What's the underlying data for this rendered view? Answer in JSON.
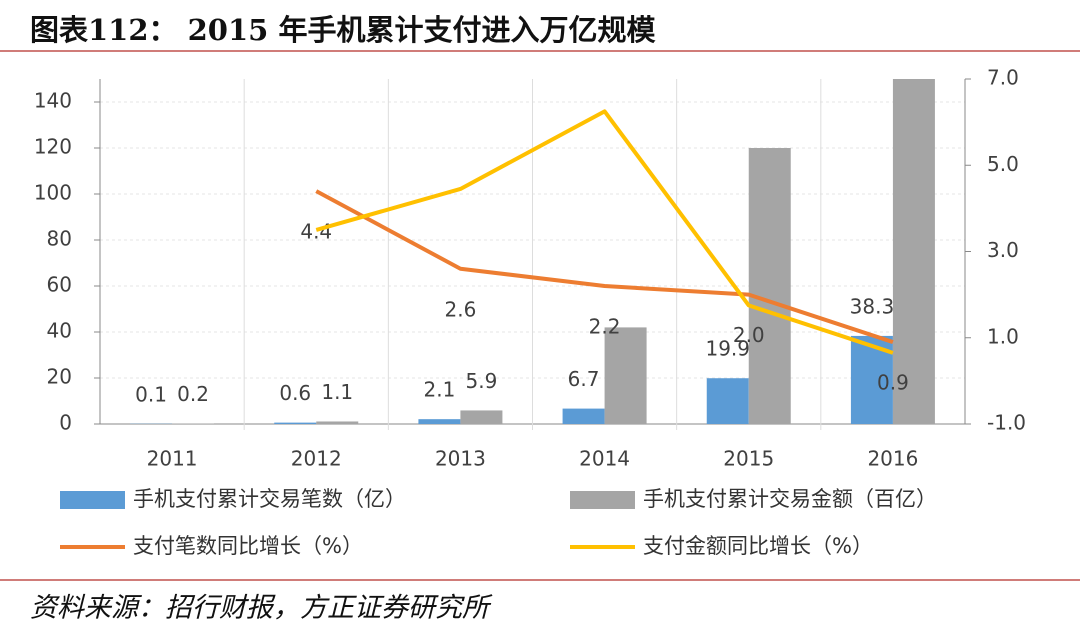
{
  "chart_data": {
    "type": "bar",
    "title": "图表112：  2015 年手机累计支付进入万亿规模",
    "source": "资料来源：招行财报，方正证券研究所",
    "categories": [
      "2011",
      "2012",
      "2013",
      "2014",
      "2015",
      "2016"
    ],
    "ylim": [
      0,
      150
    ],
    "yticks": [
      0,
      20,
      40,
      60,
      80,
      100,
      120,
      140
    ],
    "y2lim": [
      -1,
      7
    ],
    "y2ticks": [
      {
        "value": -1,
        "label": "-1.0"
      },
      {
        "value": 1,
        "label": "1.0"
      },
      {
        "value": 3,
        "label": "3.0"
      },
      {
        "value": 5,
        "label": "5.0"
      },
      {
        "value": 7,
        "label": "7.0"
      }
    ],
    "series": [
      {
        "name": "手机支付累计交易笔数（亿）",
        "type": "bar",
        "color": "#5b9bd5",
        "values": [
          0.1,
          0.6,
          2.1,
          6.7,
          19.9,
          38.3
        ]
      },
      {
        "name": "手机支付累计交易金额（百亿）",
        "type": "bar",
        "color": "#a5a5a5",
        "values": [
          0.2,
          1.1,
          5.9,
          42,
          120,
          150
        ],
        "value_labels": [
          "0.2",
          "1.1",
          "5.9",
          null,
          null,
          null
        ]
      },
      {
        "name": "支付笔数同比增长（%）",
        "type": "line",
        "axis": "y2",
        "color": "#ed7d31",
        "values": [
          null,
          4.4,
          2.6,
          2.2,
          2.0,
          0.9
        ],
        "value_labels": [
          null,
          "4.4",
          "2.6",
          "2.2",
          "2.0",
          "0.9"
        ]
      },
      {
        "name": "支付金额同比增长（%）",
        "type": "line",
        "axis": "y2",
        "color": "#ffc000",
        "values": [
          null,
          3.5,
          4.45,
          6.25,
          1.75,
          0.65
        ]
      }
    ]
  }
}
